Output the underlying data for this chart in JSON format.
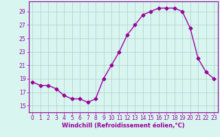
{
  "x": [
    0,
    1,
    2,
    3,
    4,
    5,
    6,
    7,
    8,
    9,
    10,
    11,
    12,
    13,
    14,
    15,
    16,
    17,
    18,
    19,
    20,
    21,
    22,
    23
  ],
  "y": [
    18.5,
    18.0,
    18.0,
    17.5,
    16.5,
    16.0,
    16.0,
    15.5,
    16.0,
    19.0,
    21.0,
    23.0,
    25.5,
    27.0,
    28.5,
    29.0,
    29.5,
    29.5,
    29.5,
    29.0,
    26.5,
    22.0,
    20.0,
    19.0
  ],
  "line_color": "#990099",
  "marker": "D",
  "markersize": 2.5,
  "linewidth": 1.0,
  "xlabel": "Windchill (Refroidissement éolien,°C)",
  "xlabel_fontsize": 6.0,
  "xlim": [
    -0.5,
    23.5
  ],
  "ylim": [
    14.0,
    30.5
  ],
  "yticks": [
    15,
    17,
    19,
    21,
    23,
    25,
    27,
    29
  ],
  "xticks": [
    0,
    1,
    2,
    3,
    4,
    5,
    6,
    7,
    8,
    9,
    10,
    11,
    12,
    13,
    14,
    15,
    16,
    17,
    18,
    19,
    20,
    21,
    22,
    23
  ],
  "tick_fontsize": 5.5,
  "background_color": "#d8f5f0",
  "grid_color": "#b0ccc8",
  "grid_linewidth": 0.5
}
